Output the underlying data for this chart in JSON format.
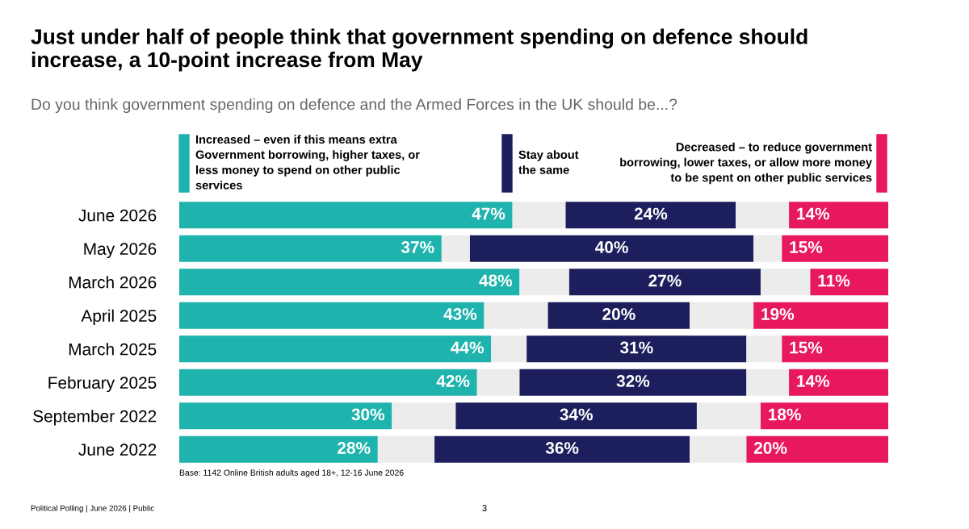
{
  "chart_data": {
    "type": "bar",
    "orientation": "horizontal",
    "stacked": true,
    "title": "Just under half of people think that government spending on defence should increase, a 10-point increase from May",
    "subtitle": "Do you think government spending on defence and the Armed Forces in the UK should be...?",
    "categories": [
      "June 2026",
      "May 2026",
      "March 2026",
      "April 2025",
      "March 2025",
      "February 2025",
      "September 2022",
      "June 2022"
    ],
    "series": [
      {
        "name": "Increased – even if this means extra Government borrowing, higher taxes, or less money to spend on other public services",
        "color": "#1fb3ad",
        "values": [
          47,
          37,
          48,
          43,
          44,
          42,
          30,
          28
        ],
        "value_labels": [
          "47%",
          "37%",
          "48%",
          "43%",
          "44%",
          "42%",
          "30%",
          "28%"
        ]
      },
      {
        "color": "#ececec",
        "values": [
          7.5,
          4,
          7,
          9,
          5,
          6,
          9,
          8
        ]
      },
      {
        "name": "Stay about the same",
        "color": "#1c1f5c",
        "values": [
          24,
          40,
          27,
          20,
          31,
          32,
          34,
          36
        ],
        "value_labels": [
          "24%",
          "40%",
          "27%",
          "20%",
          "31%",
          "32%",
          "34%",
          "36%"
        ]
      },
      {
        "color": "#ececec",
        "values": [
          7.5,
          4,
          7,
          9,
          5,
          6,
          9,
          8
        ]
      },
      {
        "name": "Decreased – to reduce government borrowing, lower taxes, or allow more money to be spent on other public services",
        "color": "#e8185c",
        "values": [
          14,
          15,
          11,
          19,
          15,
          14,
          18,
          20
        ],
        "value_labels": [
          "14%",
          "15%",
          "11%",
          "19%",
          "15%",
          "14%",
          "18%",
          "20%"
        ]
      }
    ],
    "xlim": [
      0,
      100
    ],
    "tick_labels": "y",
    "grid": false,
    "legend": "top",
    "annotations": [
      "Base: 1142 Online British adults aged 18+, 12-16 June 2026",
      "Political Polling | June 2026 | Public",
      "3"
    ]
  }
}
